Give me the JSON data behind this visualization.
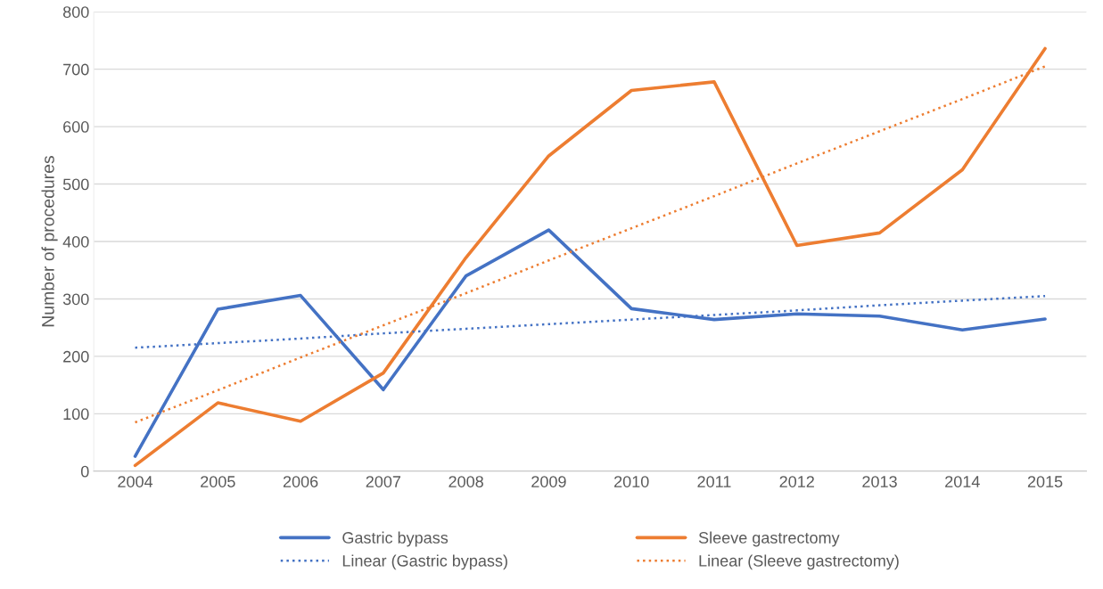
{
  "chart_data": {
    "type": "line",
    "ylabel": "Number of procedures",
    "categories": [
      "2004",
      "2005",
      "2006",
      "2007",
      "2008",
      "2009",
      "2010",
      "2011",
      "2012",
      "2013",
      "2014",
      "2015"
    ],
    "series": [
      {
        "name": "Gastric bypass",
        "color": "#4472c4",
        "line_style": "solid",
        "values": [
          26,
          282,
          306,
          142,
          340,
          420,
          283,
          264,
          274,
          270,
          246,
          265
        ]
      },
      {
        "name": "Sleeve gastrectomy",
        "color": "#ed7d31",
        "line_style": "solid",
        "values": [
          10,
          119,
          87,
          171,
          372,
          549,
          663,
          678,
          393,
          415,
          525,
          736
        ]
      },
      {
        "name": "Linear (Gastric bypass)",
        "color": "#4472c4",
        "line_style": "dotted",
        "values": [
          215,
          223,
          231,
          240,
          248,
          256,
          264,
          272,
          280,
          289,
          297,
          305
        ]
      },
      {
        "name": "Linear (Sleeve gastrectomy)",
        "color": "#ed7d31",
        "line_style": "dotted",
        "values": [
          85,
          141,
          198,
          254,
          310,
          367,
          423,
          479,
          536,
          592,
          648,
          705
        ]
      }
    ],
    "ylim": [
      0,
      800
    ],
    "yticks": [
      0,
      100,
      200,
      300,
      400,
      500,
      600,
      700,
      800
    ],
    "grid": "y",
    "legend": "bottom",
    "marker": "none"
  }
}
